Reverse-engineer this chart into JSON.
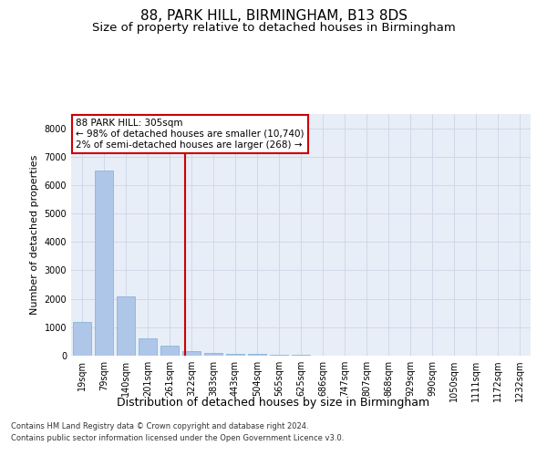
{
  "title": "88, PARK HILL, BIRMINGHAM, B13 8DS",
  "subtitle": "Size of property relative to detached houses in Birmingham",
  "xlabel": "Distribution of detached houses by size in Birmingham",
  "ylabel": "Number of detached properties",
  "categories": [
    "19sqm",
    "79sqm",
    "140sqm",
    "201sqm",
    "261sqm",
    "322sqm",
    "383sqm",
    "443sqm",
    "504sqm",
    "565sqm",
    "625sqm",
    "686sqm",
    "747sqm",
    "807sqm",
    "868sqm",
    "929sqm",
    "990sqm",
    "1050sqm",
    "1111sqm",
    "1172sqm",
    "1232sqm"
  ],
  "values": [
    1200,
    6500,
    2100,
    600,
    350,
    150,
    100,
    70,
    50,
    30,
    20,
    5,
    3,
    2,
    1,
    1,
    1,
    1,
    0,
    0,
    0
  ],
  "bar_color": "#aec6e8",
  "bar_edge_color": "#7bafd4",
  "vline_color": "#cc0000",
  "annotation_text": "88 PARK HILL: 305sqm\n← 98% of detached houses are smaller (10,740)\n2% of semi-detached houses are larger (268) →",
  "annotation_box_color": "#ffffff",
  "annotation_box_edge": "#cc0000",
  "ylim": [
    0,
    8500
  ],
  "yticks": [
    0,
    1000,
    2000,
    3000,
    4000,
    5000,
    6000,
    7000,
    8000
  ],
  "grid_color": "#d0d8e8",
  "background_color": "#e8eef8",
  "footer_line1": "Contains HM Land Registry data © Crown copyright and database right 2024.",
  "footer_line2": "Contains public sector information licensed under the Open Government Licence v3.0.",
  "title_fontsize": 11,
  "subtitle_fontsize": 9.5,
  "tick_fontsize": 7,
  "ylabel_fontsize": 8,
  "xlabel_fontsize": 9,
  "annotation_fontsize": 7.5,
  "footer_fontsize": 6
}
